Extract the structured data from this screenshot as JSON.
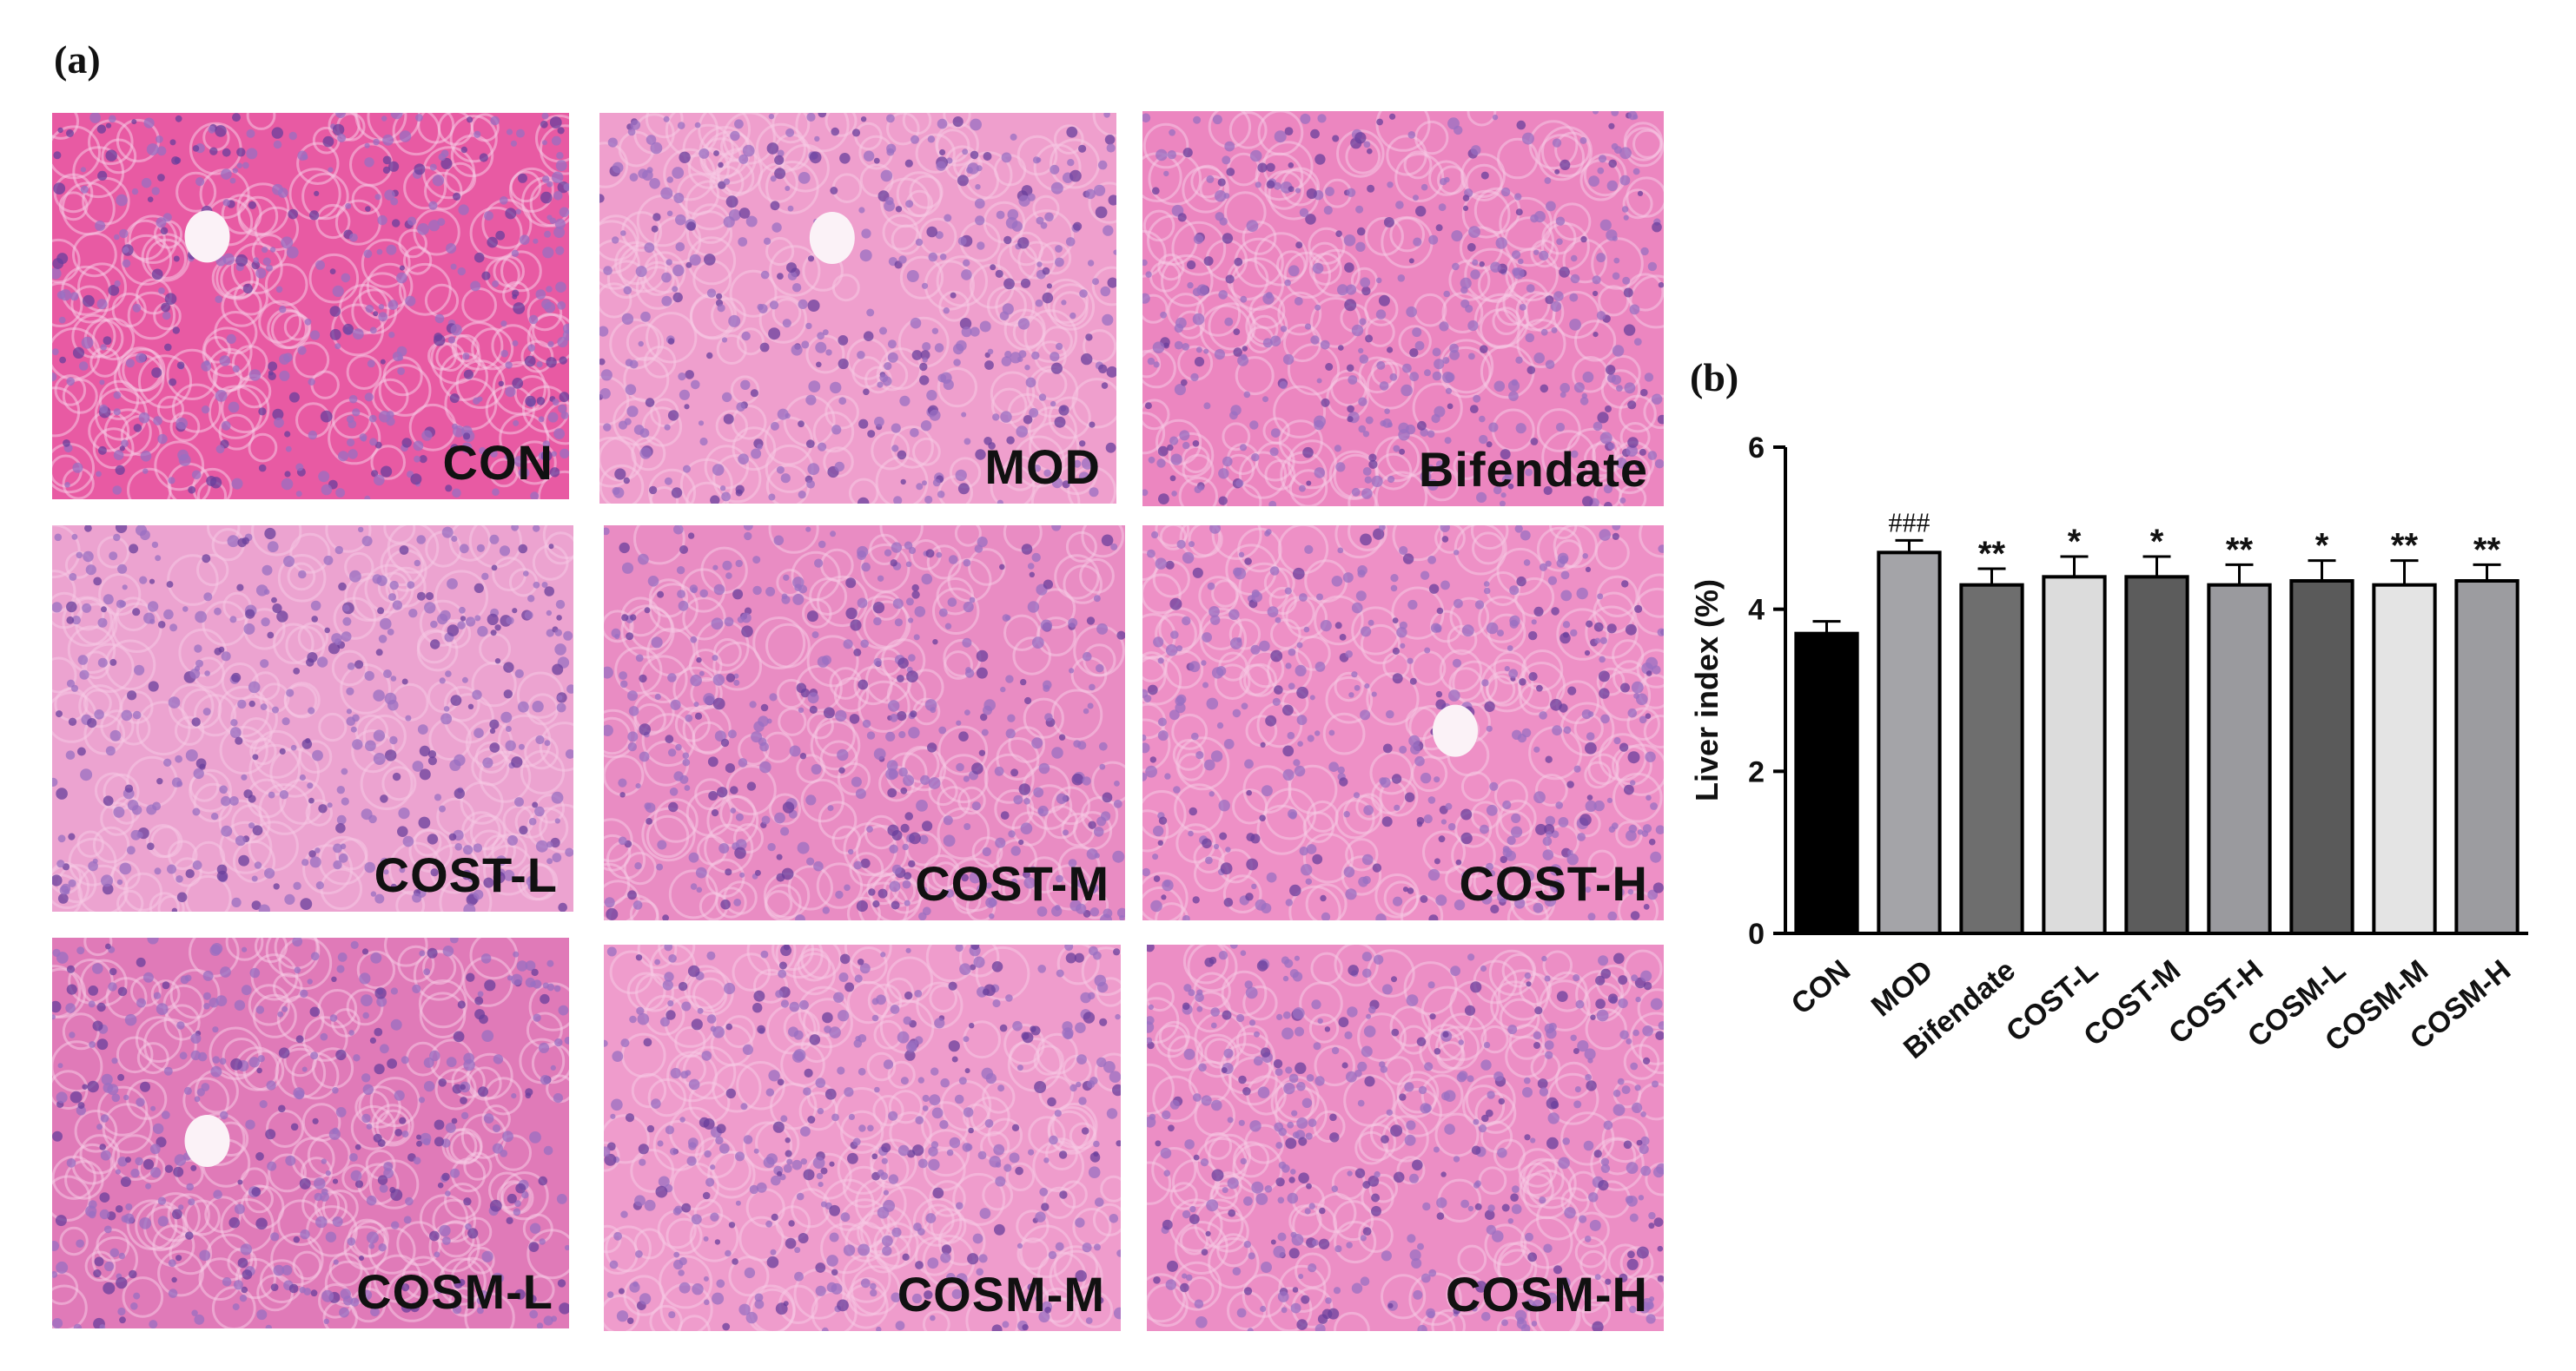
{
  "panel_a": {
    "label": "(a)",
    "images": [
      {
        "caption": "CON",
        "tone": "#e85aa3",
        "vessel": true
      },
      {
        "caption": "MOD",
        "tone": "#ef9fcd",
        "vessel": true
      },
      {
        "caption": "Bifendate",
        "tone": "#ec86c0",
        "vessel": false
      },
      {
        "caption": "COST-L",
        "tone": "#eca3d0",
        "vessel": false
      },
      {
        "caption": "COST-M",
        "tone": "#e98cc3",
        "vessel": false
      },
      {
        "caption": "COST-H",
        "tone": "#ee90c6",
        "vessel": true
      },
      {
        "caption": "COSM-L",
        "tone": "#e07ab8",
        "vessel": true
      },
      {
        "caption": "COSM-M",
        "tone": "#ef9ccc",
        "vessel": false
      },
      {
        "caption": "COSM-H",
        "tone": "#ec8ec5",
        "vessel": false
      }
    ]
  },
  "panel_b": {
    "label": "(b)"
  },
  "chart_data": {
    "type": "bar",
    "title": "",
    "ylabel": "Liver index (%)",
    "xlabel": "",
    "ylim": [
      0,
      6
    ],
    "yticks": [
      0,
      2,
      4,
      6
    ],
    "categories": [
      "CON",
      "MOD",
      "Bifendate",
      "COST-L",
      "COST-M",
      "COST-H",
      "COSM-L",
      "COSM-M",
      "COSM-H"
    ],
    "values": [
      3.7,
      4.7,
      4.3,
      4.4,
      4.4,
      4.3,
      4.35,
      4.3,
      4.35
    ],
    "errors": [
      0.15,
      0.15,
      0.2,
      0.25,
      0.25,
      0.25,
      0.25,
      0.3,
      0.2
    ],
    "significance": [
      "",
      "###",
      "**",
      "*",
      "*",
      "**",
      "*",
      "**",
      "**"
    ],
    "bar_colors": [
      "#000000",
      "#a4a4a8",
      "#6e6e6e",
      "#dcdcdc",
      "#5c5c5c",
      "#9a9a9e",
      "#5a5a5a",
      "#e4e4e4",
      "#9c9ca0"
    ],
    "grid": false,
    "legend": "none"
  }
}
